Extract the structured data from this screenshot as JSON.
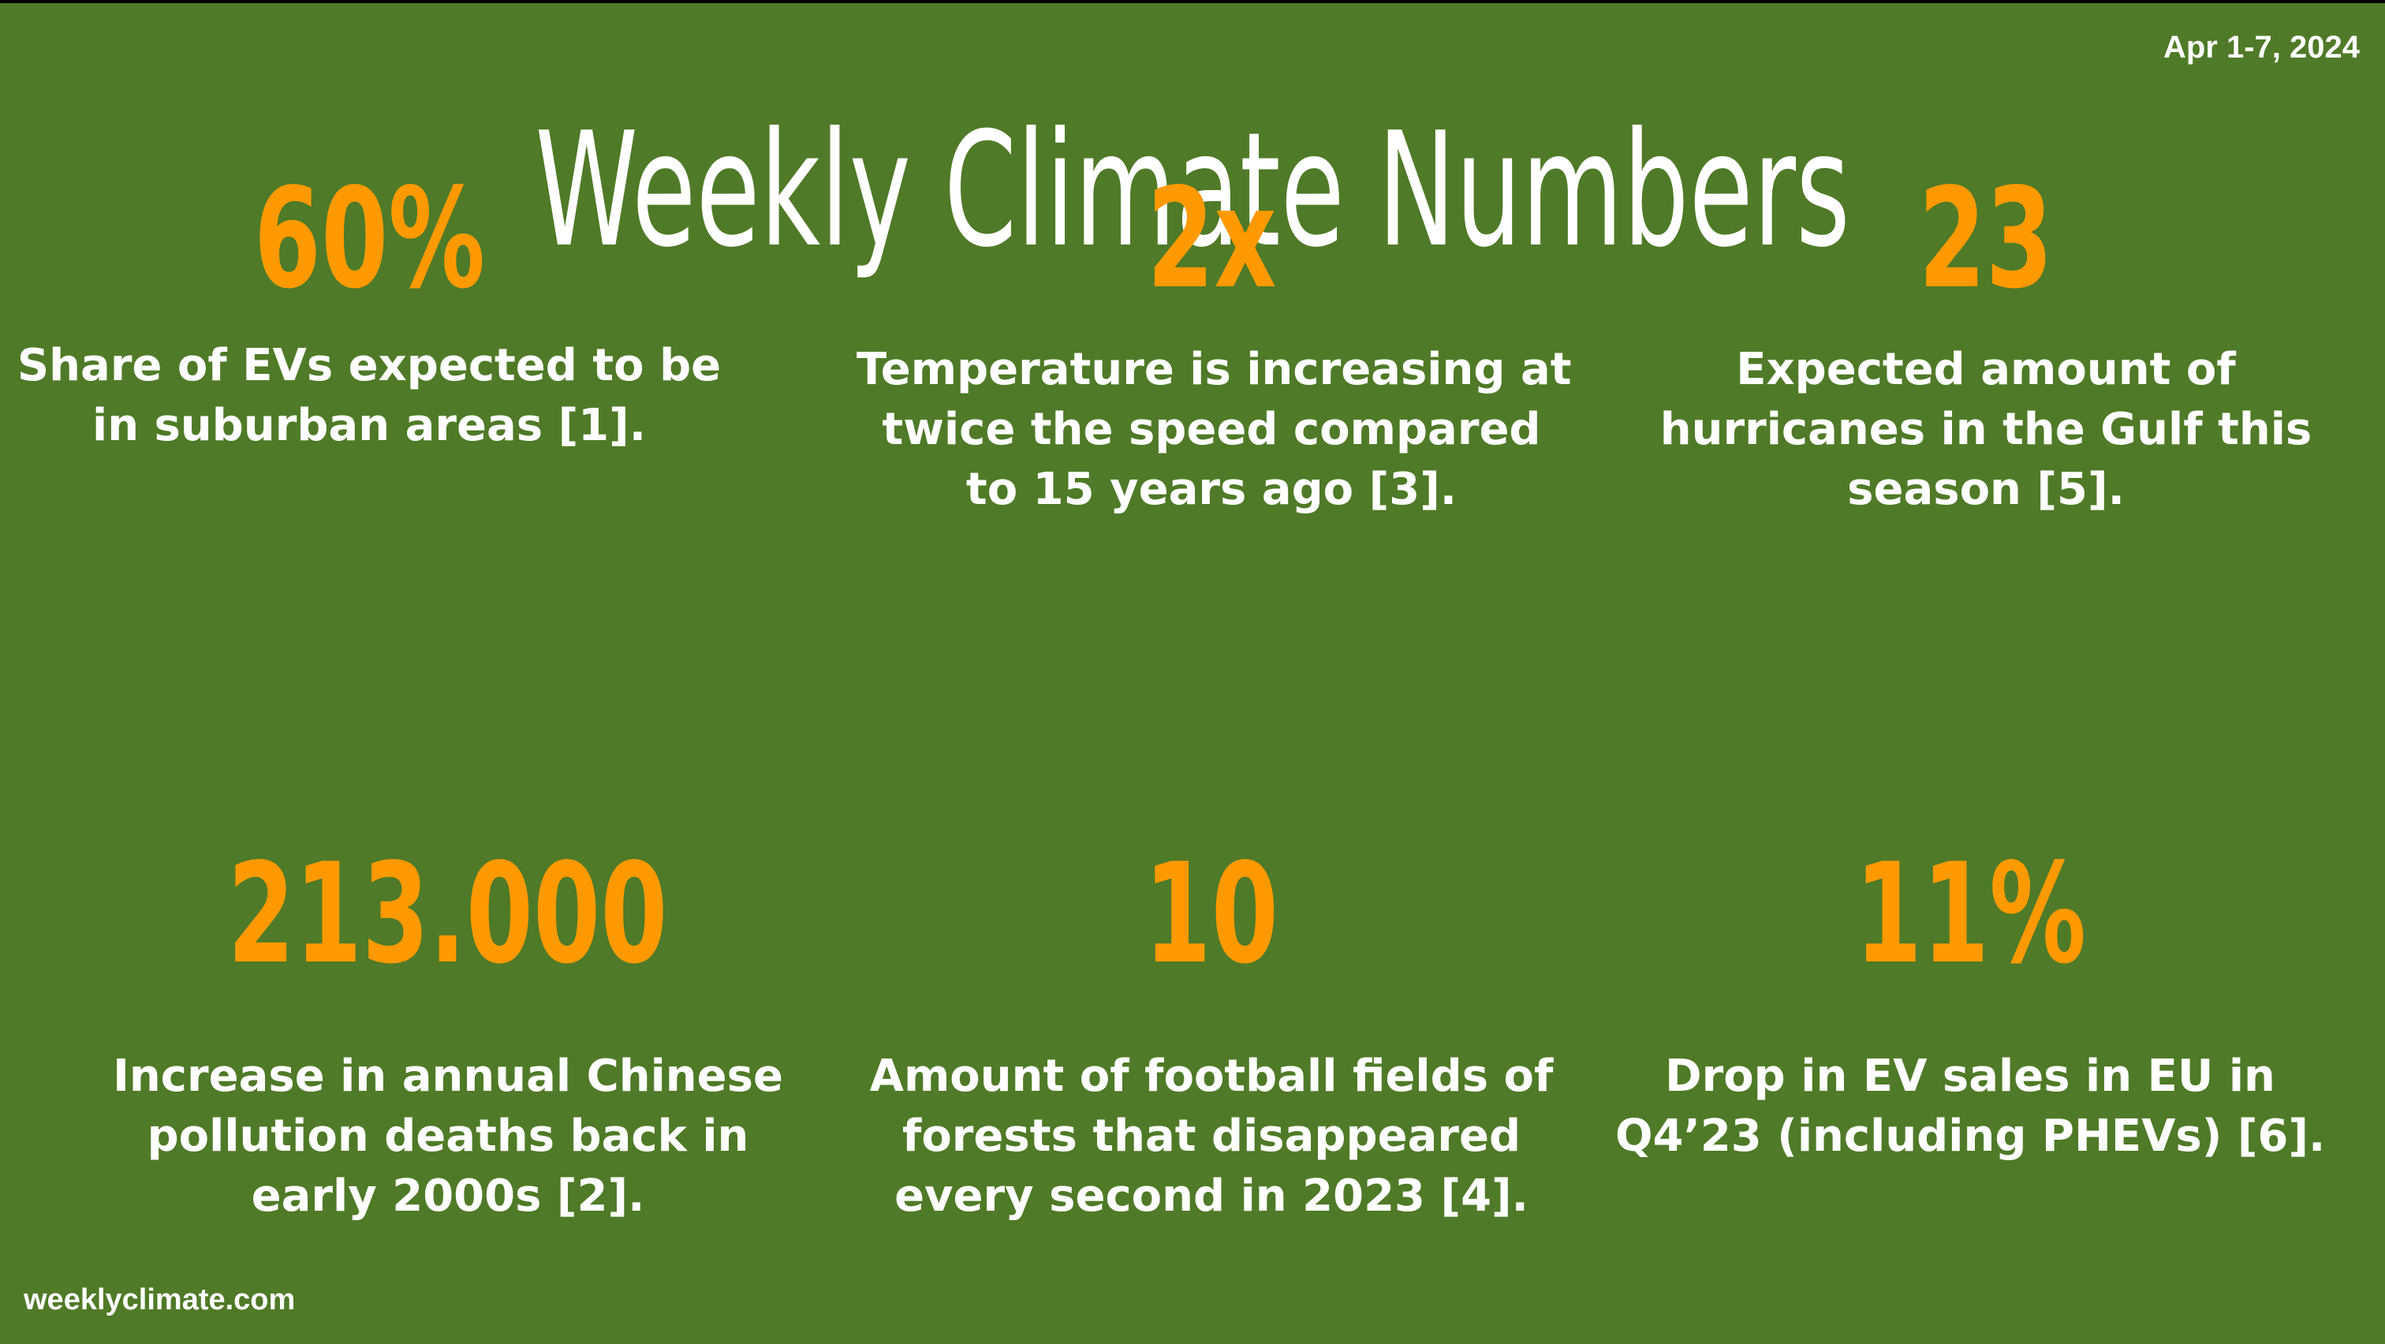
{
  "header": {
    "date": "Apr 1-7, 2024",
    "title": "Weekly Climate Numbers"
  },
  "stats": [
    {
      "value": "60%",
      "description": [
        "Share of EVs expected to be",
        "in suburban areas [1]."
      ]
    },
    {
      "value": "2x",
      "description": [
        "Temperature is increasing at",
        "twice the speed compared",
        "to 15 years ago [3]."
      ]
    },
    {
      "value": "23",
      "description": [
        "Expected amount of",
        "hurricanes in the Gulf this",
        "season [5]."
      ]
    },
    {
      "value": "213.000",
      "description": [
        "Increase in annual Chinese",
        "pollution deaths back in",
        "early 2000s [2]."
      ]
    },
    {
      "value": "10",
      "description": [
        "Amount of football fields of",
        "forests that disappeared",
        "every second in 2023 [4]."
      ]
    },
    {
      "value": "11%",
      "description": [
        "Drop in EV sales in EU in",
        "Q4’23 (including PHEVs) [6]."
      ]
    }
  ],
  "footer": {
    "website": "weeklyclimate.com"
  },
  "colors": {
    "background": "#4f7a27",
    "accent": "#ff9900",
    "text": "#ffffff"
  }
}
